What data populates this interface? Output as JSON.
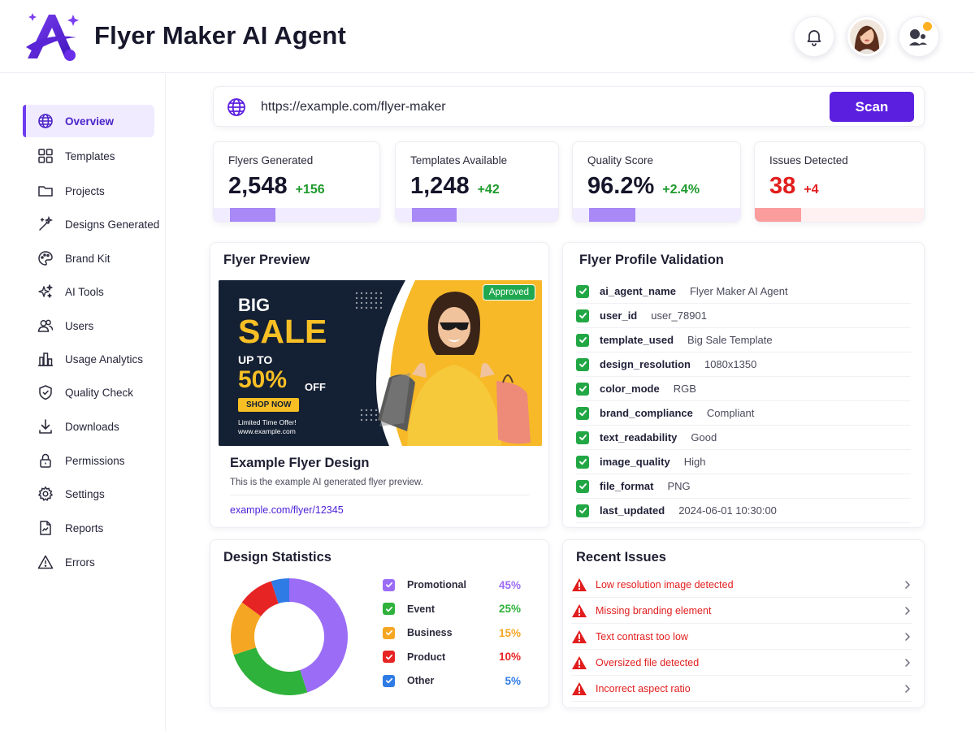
{
  "app": {
    "title": "Flyer Maker AI Agent"
  },
  "colors": {
    "accent": "#5b1fe0",
    "accent_light": "#a889f5",
    "success": "#22a745",
    "danger": "#e11d1d"
  },
  "header": {
    "icons": [
      "bell-icon",
      "user-avatar",
      "agent-icon"
    ]
  },
  "sidebar": {
    "items": [
      {
        "label": "Overview",
        "icon": "globe-icon",
        "active": true
      },
      {
        "label": "Templates",
        "icon": "grid-icon"
      },
      {
        "label": "Projects",
        "icon": "folder-icon"
      },
      {
        "label": "Designs Generated",
        "icon": "magic-wand-icon"
      },
      {
        "label": "Brand Kit",
        "icon": "palette-icon"
      },
      {
        "label": "AI Tools",
        "icon": "sparkles-icon"
      },
      {
        "label": "Users",
        "icon": "users-icon"
      },
      {
        "label": "Usage Analytics",
        "icon": "buildings-chart-icon"
      },
      {
        "label": "Quality Check",
        "icon": "shield-check-icon"
      },
      {
        "label": "Downloads",
        "icon": "download-icon"
      },
      {
        "label": "Permissions",
        "icon": "lock-icon"
      },
      {
        "label": "Settings",
        "icon": "gear-icon"
      },
      {
        "label": "Reports",
        "icon": "report-icon"
      },
      {
        "label": "Errors",
        "icon": "warning-icon"
      }
    ]
  },
  "scan": {
    "url": "https://example.com/flyer-maker",
    "button_label": "Scan"
  },
  "stats": [
    {
      "label": "Flyers Generated",
      "value": "2,548",
      "delta": "+156"
    },
    {
      "label": "Templates Available",
      "value": "1,248",
      "delta": "+42"
    },
    {
      "label": "Quality Score",
      "value": "96.2%",
      "delta": "+2.4%"
    },
    {
      "label": "Issues Detected",
      "value": "38",
      "delta": "+4"
    }
  ],
  "preview": {
    "title": "Flyer Preview",
    "badge": "Approved",
    "flyer": {
      "line1": "BIG",
      "line2": "SALE",
      "line3": "UP TO",
      "line4": "50%",
      "line5": "OFF",
      "cta": "SHOP NOW",
      "footer1": "Limited Time Offer!",
      "footer2": "www.example.com"
    },
    "name": "Example Flyer Design",
    "description": "This is the example AI generated flyer preview.",
    "link": "example.com/flyer/12345"
  },
  "validation": {
    "title": "Flyer Profile Validation",
    "rows": [
      {
        "key": "ai_agent_name",
        "value": "Flyer Maker AI Agent"
      },
      {
        "key": "user_id",
        "value": "user_78901"
      },
      {
        "key": "template_used",
        "value": "Big Sale Template"
      },
      {
        "key": "design_resolution",
        "value": "1080x1350"
      },
      {
        "key": "color_mode",
        "value": "RGB"
      },
      {
        "key": "brand_compliance",
        "value": "Compliant"
      },
      {
        "key": "text_readability",
        "value": "Good"
      },
      {
        "key": "image_quality",
        "value": "High"
      },
      {
        "key": "file_format",
        "value": "PNG"
      },
      {
        "key": "last_updated",
        "value": "2024-06-01 10:30:00"
      }
    ]
  },
  "design_stats": {
    "title": "Design Statistics",
    "legend": [
      {
        "name": "Promotional",
        "pct": "45%",
        "color": "#9b6cf6"
      },
      {
        "name": "Event",
        "pct": "25%",
        "color": "#2fb23b"
      },
      {
        "name": "Business",
        "pct": "15%",
        "color": "#f5a623"
      },
      {
        "name": "Product",
        "pct": "10%",
        "color": "#e62424"
      },
      {
        "name": "Other",
        "pct": "5%",
        "color": "#2f7be6"
      }
    ]
  },
  "chart_data": {
    "type": "pie",
    "categories": [
      "Promotional",
      "Event",
      "Business",
      "Product",
      "Other"
    ],
    "values": [
      45,
      25,
      15,
      10,
      5
    ],
    "title": "Design Statistics"
  },
  "issues": {
    "title": "Recent Issues",
    "items": [
      {
        "text": "Low resolution image detected"
      },
      {
        "text": "Missing branding element"
      },
      {
        "text": "Text contrast too low"
      },
      {
        "text": "Oversized file detected"
      },
      {
        "text": "Incorrect aspect ratio"
      }
    ]
  }
}
